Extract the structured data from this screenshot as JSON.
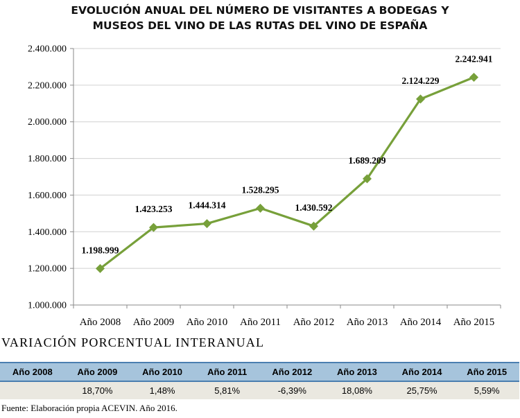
{
  "title": {
    "line1": "EVOLUCIÓN ANUAL DEL NÚMERO DE VISITANTES A BODEGAS Y",
    "line2": "MUSEOS DEL VINO DE LAS RUTAS DEL VINO DE ESPAÑA"
  },
  "chart_data": {
    "type": "line",
    "categories": [
      "Año 2008",
      "Año 2009",
      "Año 2010",
      "Año 2011",
      "Año 2012",
      "Año 2013",
      "Año 2014",
      "Año 2015"
    ],
    "values": [
      1198999,
      1423253,
      1444314,
      1528295,
      1430592,
      1689209,
      2124229,
      2242941
    ],
    "data_labels": [
      "1.198.999",
      "1.423.253",
      "1.444.314",
      "1.528.295",
      "1.430.592",
      "1.689.209",
      "2.124.229",
      "2.242.941"
    ],
    "ylim": [
      1000000,
      2400000
    ],
    "yticks": [
      1000000,
      1200000,
      1400000,
      1600000,
      1800000,
      2000000,
      2200000,
      2400000
    ],
    "ytick_labels": [
      "1.000.000",
      "1.200.000",
      "1.400.000",
      "1.600.000",
      "1.800.000",
      "2.000.000",
      "2.200.000",
      "2.400.000"
    ],
    "grid": true,
    "line_color": "#77a03a",
    "grid_color": "#d0d0d0"
  },
  "variation": {
    "title": "VARIACIÓN PORCENTUAL INTERANUAL",
    "headers": [
      "Año 2008",
      "Año 2009",
      "Año 2010",
      "Año 2011",
      "Año 2012",
      "Año 2013",
      "Año 2014",
      "Año 2015"
    ],
    "values": [
      "",
      "18,70%",
      "1,48%",
      "5,81%",
      "-6,39%",
      "18,08%",
      "25,75%",
      "5,59%"
    ]
  },
  "source": "Fuente: Elaboración propia ACEVIN. Año 2016."
}
